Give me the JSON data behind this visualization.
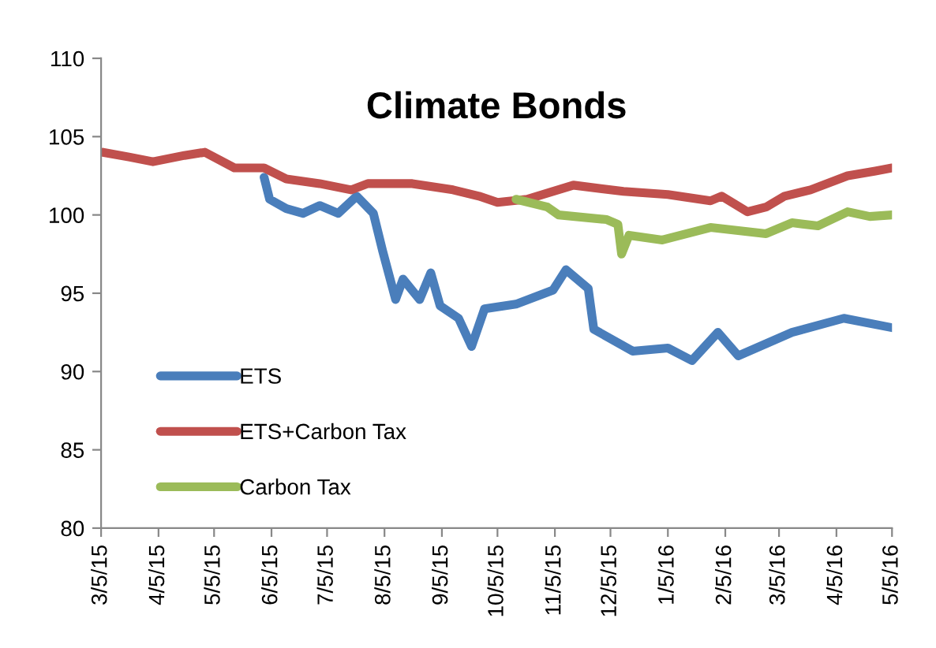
{
  "chart_data": {
    "type": "line",
    "title": "Climate Bonds",
    "series": [
      {
        "name": "ETS",
        "color": "#4a7ebb",
        "x": [
          "2015-06-01",
          "2015-06-04",
          "2015-06-13",
          "2015-06-22",
          "2015-07-01",
          "2015-07-11",
          "2015-07-21",
          "2015-07-30",
          "2015-08-04",
          "2015-08-11",
          "2015-08-15",
          "2015-08-24",
          "2015-08-30",
          "2015-09-04",
          "2015-09-14",
          "2015-09-21",
          "2015-09-28",
          "2015-10-15",
          "2015-11-04",
          "2015-11-11",
          "2015-11-23",
          "2015-11-26",
          "2015-12-17",
          "2016-01-05",
          "2016-01-18",
          "2016-02-01",
          "2016-02-12",
          "2016-03-12",
          "2016-04-09",
          "2016-05-05"
        ],
        "values": [
          102.4,
          101.0,
          100.4,
          100.1,
          100.6,
          100.1,
          101.2,
          100.1,
          97.7,
          94.6,
          95.9,
          94.6,
          96.3,
          94.2,
          93.4,
          91.6,
          94.0,
          94.3,
          95.2,
          96.5,
          95.3,
          92.7,
          91.3,
          91.5,
          90.7,
          92.5,
          91.0,
          92.5,
          93.4,
          92.8
        ]
      },
      {
        "name": "ETS+Carbon Tax",
        "color": "#c0504d",
        "x": [
          "2015-03-06",
          "2015-03-20",
          "2015-04-02",
          "2015-04-19",
          "2015-04-30",
          "2015-05-16",
          "2015-06-01",
          "2015-06-13",
          "2015-07-01",
          "2015-07-18",
          "2015-07-27",
          "2015-08-20",
          "2015-09-11",
          "2015-09-25",
          "2015-10-05",
          "2015-10-21",
          "2015-11-15",
          "2015-12-12",
          "2016-01-05",
          "2016-01-28",
          "2016-02-03",
          "2016-02-17",
          "2016-02-27",
          "2016-03-08",
          "2016-03-22",
          "2016-04-11",
          "2016-04-26",
          "2016-05-05"
        ],
        "values": [
          104.0,
          103.7,
          103.4,
          103.8,
          104.0,
          103.0,
          103.0,
          102.3,
          102.0,
          101.6,
          102.0,
          102.0,
          101.6,
          101.2,
          100.8,
          101.0,
          101.9,
          101.5,
          101.3,
          100.9,
          101.2,
          100.2,
          100.5,
          101.2,
          101.6,
          102.5,
          102.8,
          103.0
        ]
      },
      {
        "name": "Carbon Tax",
        "color": "#9bbb59",
        "x": [
          "2015-10-15",
          "2015-11-01",
          "2015-11-07",
          "2015-12-03",
          "2015-12-09",
          "2015-12-11",
          "2015-12-15",
          "2016-01-02",
          "2016-01-28",
          "2016-02-27",
          "2016-03-12",
          "2016-03-26",
          "2016-04-11",
          "2016-04-23",
          "2016-05-05"
        ],
        "values": [
          101.0,
          100.5,
          100.0,
          99.7,
          99.4,
          97.5,
          98.7,
          98.4,
          99.2,
          98.8,
          99.5,
          99.3,
          100.2,
          99.9,
          100.0
        ]
      }
    ],
    "xlim": [
      "2015-03-05",
      "2016-05-05"
    ],
    "xticks": [
      {
        "value": "2015-03-05",
        "label": "3/5/15"
      },
      {
        "value": "2015-04-05",
        "label": "4/5/15"
      },
      {
        "value": "2015-05-05",
        "label": "5/5/15"
      },
      {
        "value": "2015-06-05",
        "label": "6/5/15"
      },
      {
        "value": "2015-07-05",
        "label": "7/5/15"
      },
      {
        "value": "2015-08-05",
        "label": "8/5/15"
      },
      {
        "value": "2015-09-05",
        "label": "9/5/15"
      },
      {
        "value": "2015-10-05",
        "label": "10/5/15"
      },
      {
        "value": "2015-11-05",
        "label": "11/5/15"
      },
      {
        "value": "2015-12-05",
        "label": "12/5/15"
      },
      {
        "value": "2016-01-05",
        "label": "1/5/16"
      },
      {
        "value": "2016-02-05",
        "label": "2/5/16"
      },
      {
        "value": "2016-03-05",
        "label": "3/5/16"
      },
      {
        "value": "2016-04-05",
        "label": "4/5/16"
      },
      {
        "value": "2016-05-05",
        "label": "5/5/16"
      }
    ],
    "ylim": [
      80,
      110
    ],
    "yticks": [
      80,
      85,
      90,
      95,
      100,
      105,
      110
    ],
    "grid": false,
    "legend": "bottom left",
    "marker": "none",
    "line_style": "solid"
  }
}
